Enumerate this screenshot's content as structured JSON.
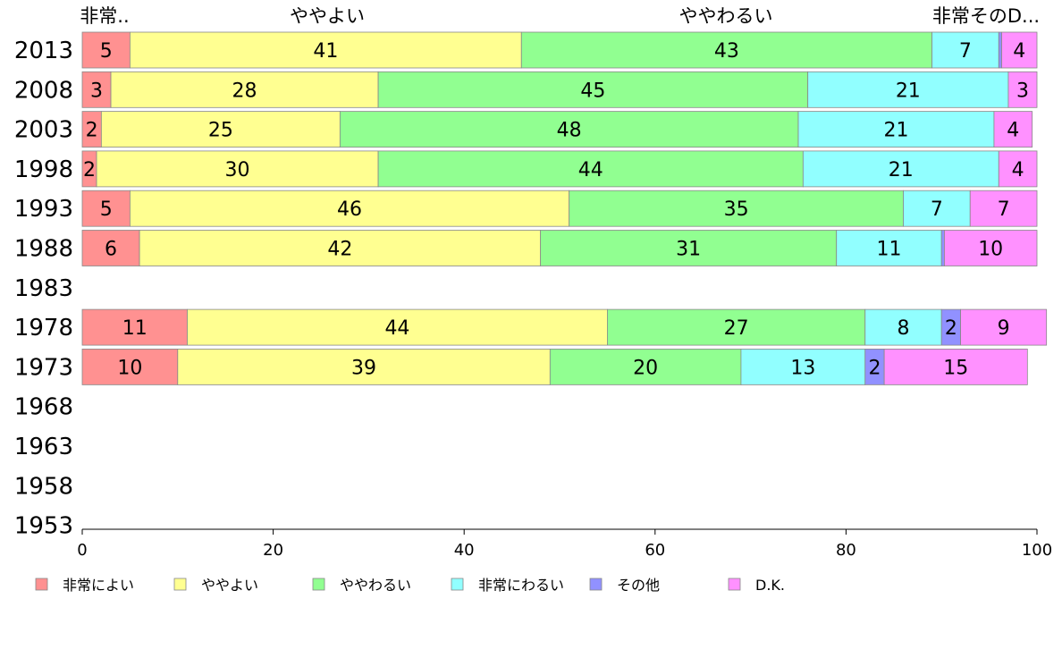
{
  "chart_data": {
    "type": "bar",
    "orientation": "horizontal",
    "stacked": true,
    "xlim": [
      0,
      100
    ],
    "xticks": [
      "0",
      "20",
      "40",
      "60",
      "80",
      "100"
    ],
    "categories": [
      "2013",
      "2008",
      "2003",
      "1998",
      "1993",
      "1988",
      "1983",
      "1978",
      "1973",
      "1968",
      "1963",
      "1958",
      "1953"
    ],
    "top_labels": [
      "非常..",
      "ややよい",
      "ややわるい",
      "非常そのD..."
    ],
    "series": [
      {
        "name": "非常によい",
        "color": "#ff9191",
        "values": [
          5,
          3,
          2,
          1.5,
          5,
          6,
          null,
          11,
          10,
          null,
          null,
          null,
          null
        ]
      },
      {
        "name": "ややよい",
        "color": "#ffff91",
        "values": [
          41,
          28,
          25,
          29.5,
          46,
          42,
          null,
          44,
          39,
          null,
          null,
          null,
          null
        ]
      },
      {
        "name": "ややわるい",
        "color": "#91ff91",
        "values": [
          43,
          45,
          48,
          44.5,
          35,
          31,
          null,
          27,
          20,
          null,
          null,
          null,
          null
        ]
      },
      {
        "name": "非常にわるい",
        "color": "#91ffff",
        "values": [
          7,
          21,
          20.5,
          20.5,
          7,
          11,
          null,
          8,
          13,
          null,
          null,
          null,
          null
        ]
      },
      {
        "name": "その他",
        "color": "#9191ff",
        "values": [
          0.3,
          0,
          0,
          0,
          0,
          0.3,
          null,
          2,
          2,
          null,
          null,
          null,
          null
        ]
      },
      {
        "name": "D.K.",
        "color": "#ff91ff",
        "values": [
          3.7,
          3,
          4,
          4,
          7,
          9.7,
          null,
          9,
          15,
          null,
          null,
          null,
          null
        ]
      }
    ],
    "data_labels": [
      [
        "5",
        "41",
        "43",
        "7",
        "",
        "4"
      ],
      [
        "3",
        "28",
        "45",
        "21",
        "",
        "3"
      ],
      [
        "2",
        "25",
        "48",
        "21",
        "",
        "4"
      ],
      [
        "2",
        "30",
        "44",
        "21",
        "",
        "4"
      ],
      [
        "5",
        "46",
        "35",
        "7",
        "",
        "7"
      ],
      [
        "6",
        "42",
        "31",
        "11",
        "",
        "10"
      ],
      [
        "",
        "",
        "",
        "",
        "",
        ""
      ],
      [
        "11",
        "44",
        "27",
        "8",
        "2",
        "9"
      ],
      [
        "10",
        "39",
        "20",
        "13",
        "2",
        "15"
      ],
      [
        "",
        "",
        "",
        "",
        "",
        ""
      ],
      [
        "",
        "",
        "",
        "",
        "",
        ""
      ],
      [
        "",
        "",
        "",
        "",
        "",
        ""
      ],
      [
        "",
        "",
        "",
        "",
        "",
        ""
      ]
    ],
    "legend_position": "bottom",
    "grid": false
  }
}
